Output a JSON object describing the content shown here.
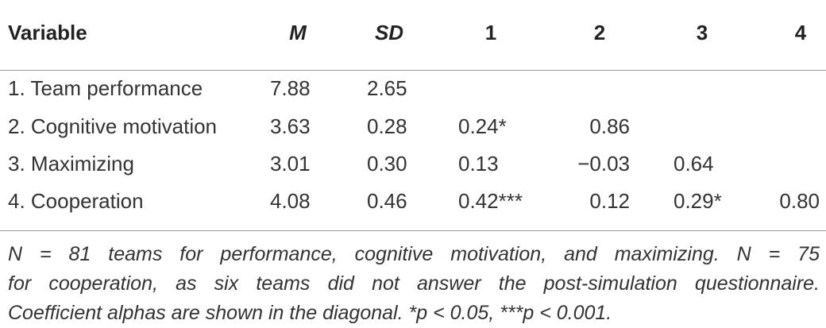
{
  "table": {
    "header": [
      "Variable",
      "M",
      "SD",
      "1",
      "2",
      "3",
      "4"
    ],
    "rows": [
      [
        "1. Team performance",
        "7.88",
        "2.65"
      ],
      [
        "2. Cognitive motivation",
        "3.63",
        "0.28",
        "0.24*",
        "0.86"
      ],
      [
        "3. Maximizing",
        "3.01",
        "0.30",
        "0.13",
        "−0.03",
        "0.64"
      ],
      [
        "4. Cooperation",
        "4.08",
        "0.46",
        "0.42***",
        "0.12",
        "0.29*",
        "0.80"
      ]
    ]
  },
  "footnote": {
    "lines": [
      "N = 81 teams for performance, cognitive motivation, and maximizing. N = 75",
      "for cooperation, as six teams did not answer the post-simulation questionnaire.",
      "Coefficient alphas are shown in the diagonal. *p < 0.05, ***p < 0.001."
    ]
  }
}
